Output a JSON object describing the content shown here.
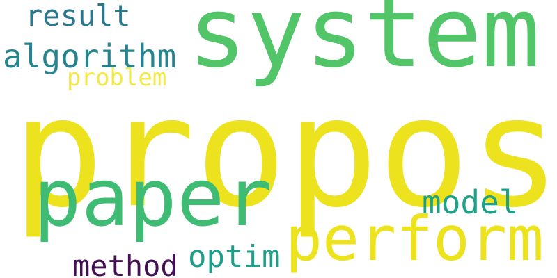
{
  "words": {
    "propos": {
      "text": "propos",
      "color": "#ece31e"
    },
    "system": {
      "text": "system",
      "color": "#52c568"
    },
    "paper": {
      "text": "paper",
      "color": "#3fbc73"
    },
    "perform": {
      "text": "perform",
      "color": "#ece31e"
    },
    "algorithm": {
      "text": "algorithm",
      "color": "#25848e"
    },
    "result": {
      "text": "result",
      "color": "#2a788e"
    },
    "problem": {
      "text": "problem",
      "color": "#f3e84a"
    },
    "model": {
      "text": "model",
      "color": "#1fa187"
    },
    "optim": {
      "text": "optim",
      "color": "#1f9e89"
    },
    "method": {
      "text": "method",
      "color": "#440f54"
    }
  }
}
